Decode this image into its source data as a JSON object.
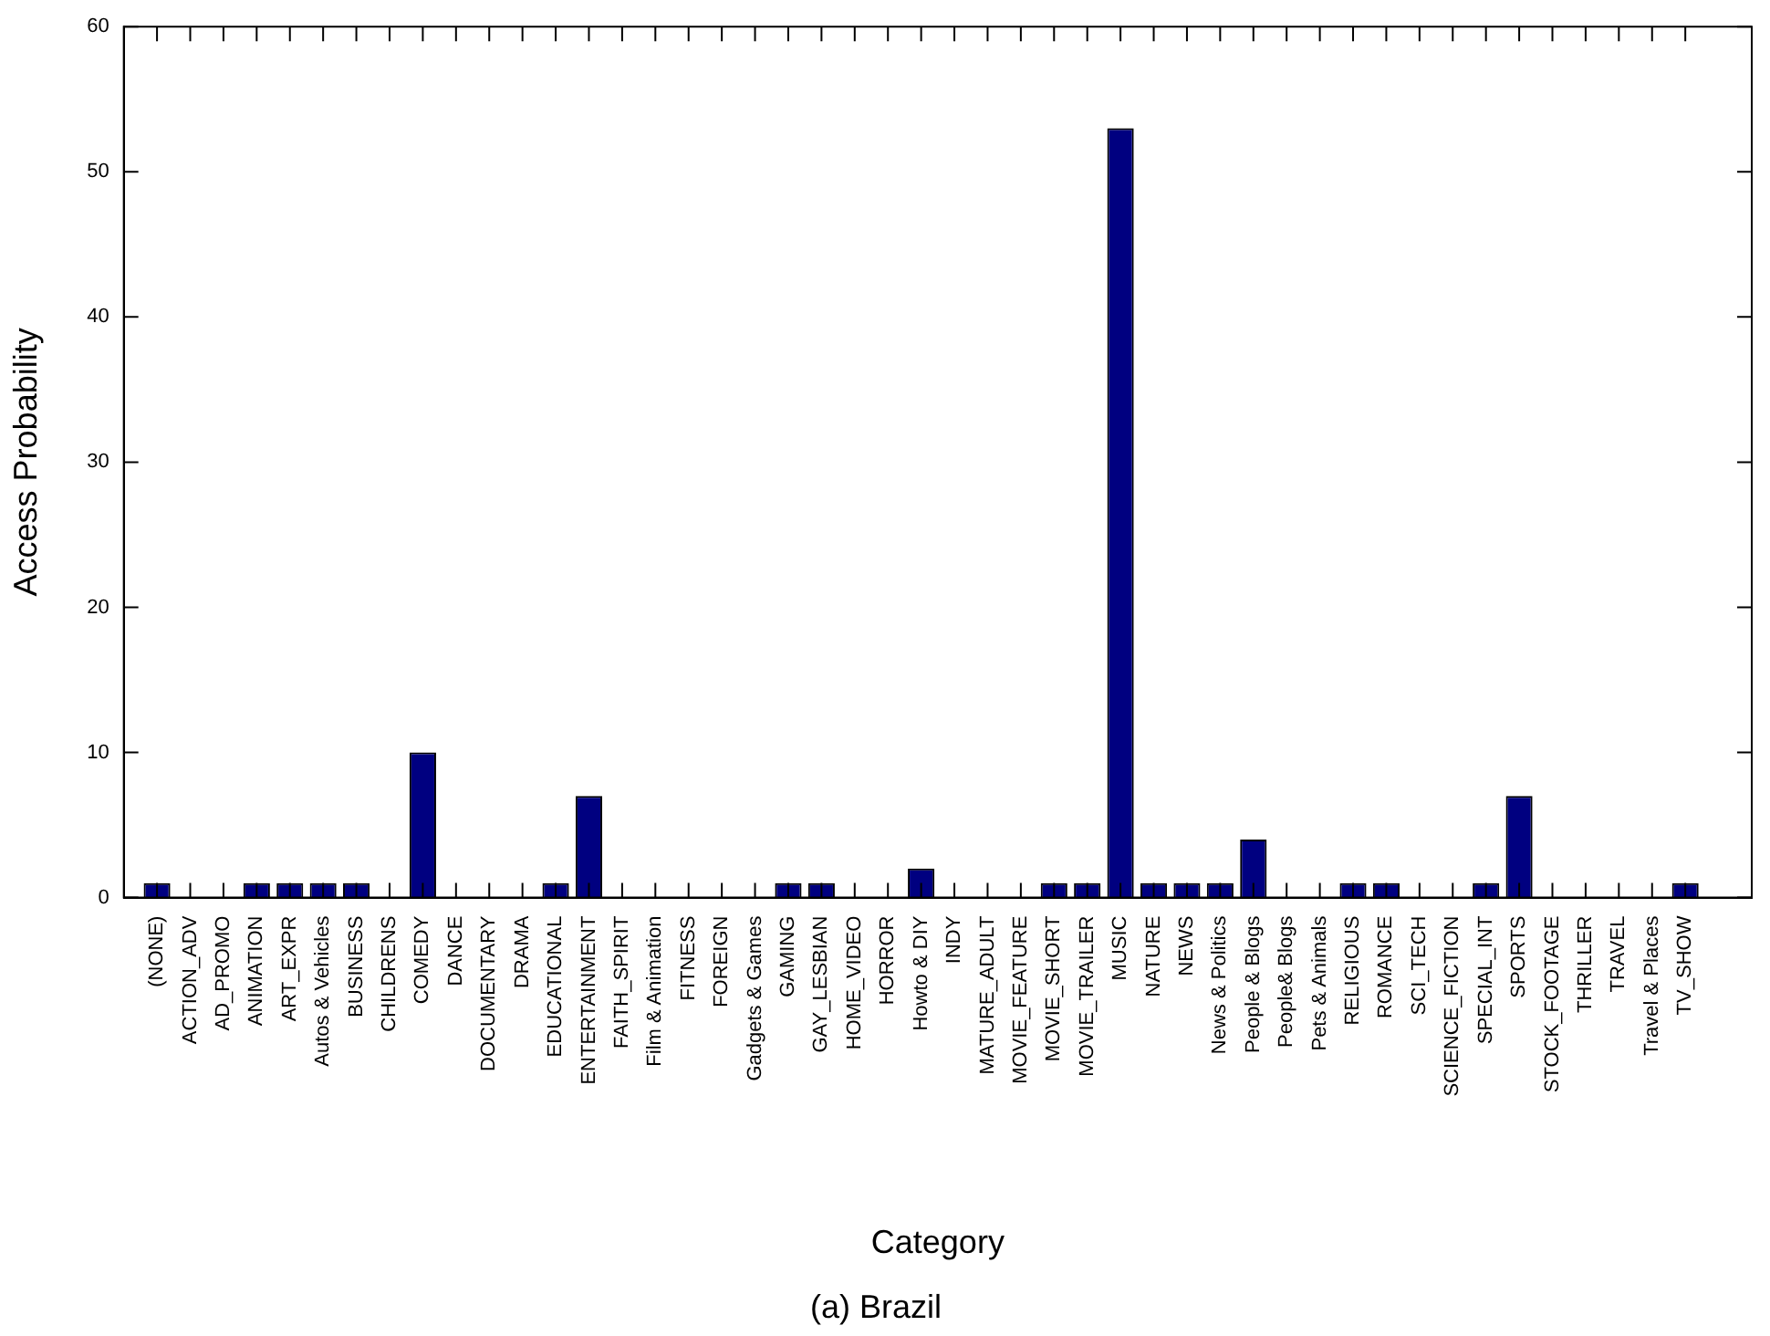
{
  "chart_data": {
    "type": "bar",
    "title": "(a) Brazil",
    "xlabel": "Category",
    "ylabel": "Access Probability",
    "categories": [
      "(NONE)",
      "ACTION_ADV",
      "AD_PROMO",
      "ANIMATION",
      "ART_EXPR",
      "Autos & Vehicles",
      "BUSINESS",
      "CHILDRENS",
      "COMEDY",
      "DANCE",
      "DOCUMENTARY",
      "DRAMA",
      "EDUCATIONAL",
      "ENTERTAINMENT",
      "FAITH_SPIRIT",
      "Film & Animation",
      "FITNESS",
      "FOREIGN",
      "Gadgets & Games",
      "GAMING",
      "GAY_LESBIAN",
      "HOME_VIDEO",
      "HORROR",
      "Howto & DIY",
      "INDY",
      "MATURE_ADULT",
      "MOVIE_FEATURE",
      "MOVIE_SHORT",
      "MOVIE_TRAILER",
      "MUSIC",
      "NATURE",
      "NEWS",
      "News & Politics",
      "People & Blogs",
      "People& Blogs",
      "Pets & Animals",
      "RELIGIOUS",
      "ROMANCE",
      "SCI_TECH",
      "SCIENCE_FICTION",
      "SPECIAL_INT",
      "SPORTS",
      "STOCK_FOOTAGE",
      "THRILLER",
      "TRAVEL",
      "Travel & Places",
      "TV_SHOW"
    ],
    "values": [
      1,
      0,
      0,
      1,
      1,
      1,
      1,
      0,
      10,
      0,
      0,
      0,
      1,
      7,
      0,
      0,
      0,
      0,
      0,
      1,
      1,
      0,
      0,
      2,
      0,
      0,
      0,
      1,
      1,
      53,
      1,
      1,
      1,
      4,
      0,
      0,
      1,
      1,
      0,
      0,
      1,
      7,
      0,
      0,
      0,
      0,
      1
    ],
    "color": "#000080",
    "ylim": [
      0,
      60
    ],
    "yticks": [
      0,
      10,
      20,
      30,
      40,
      50,
      60
    ],
    "grid": false,
    "legend": false
  }
}
